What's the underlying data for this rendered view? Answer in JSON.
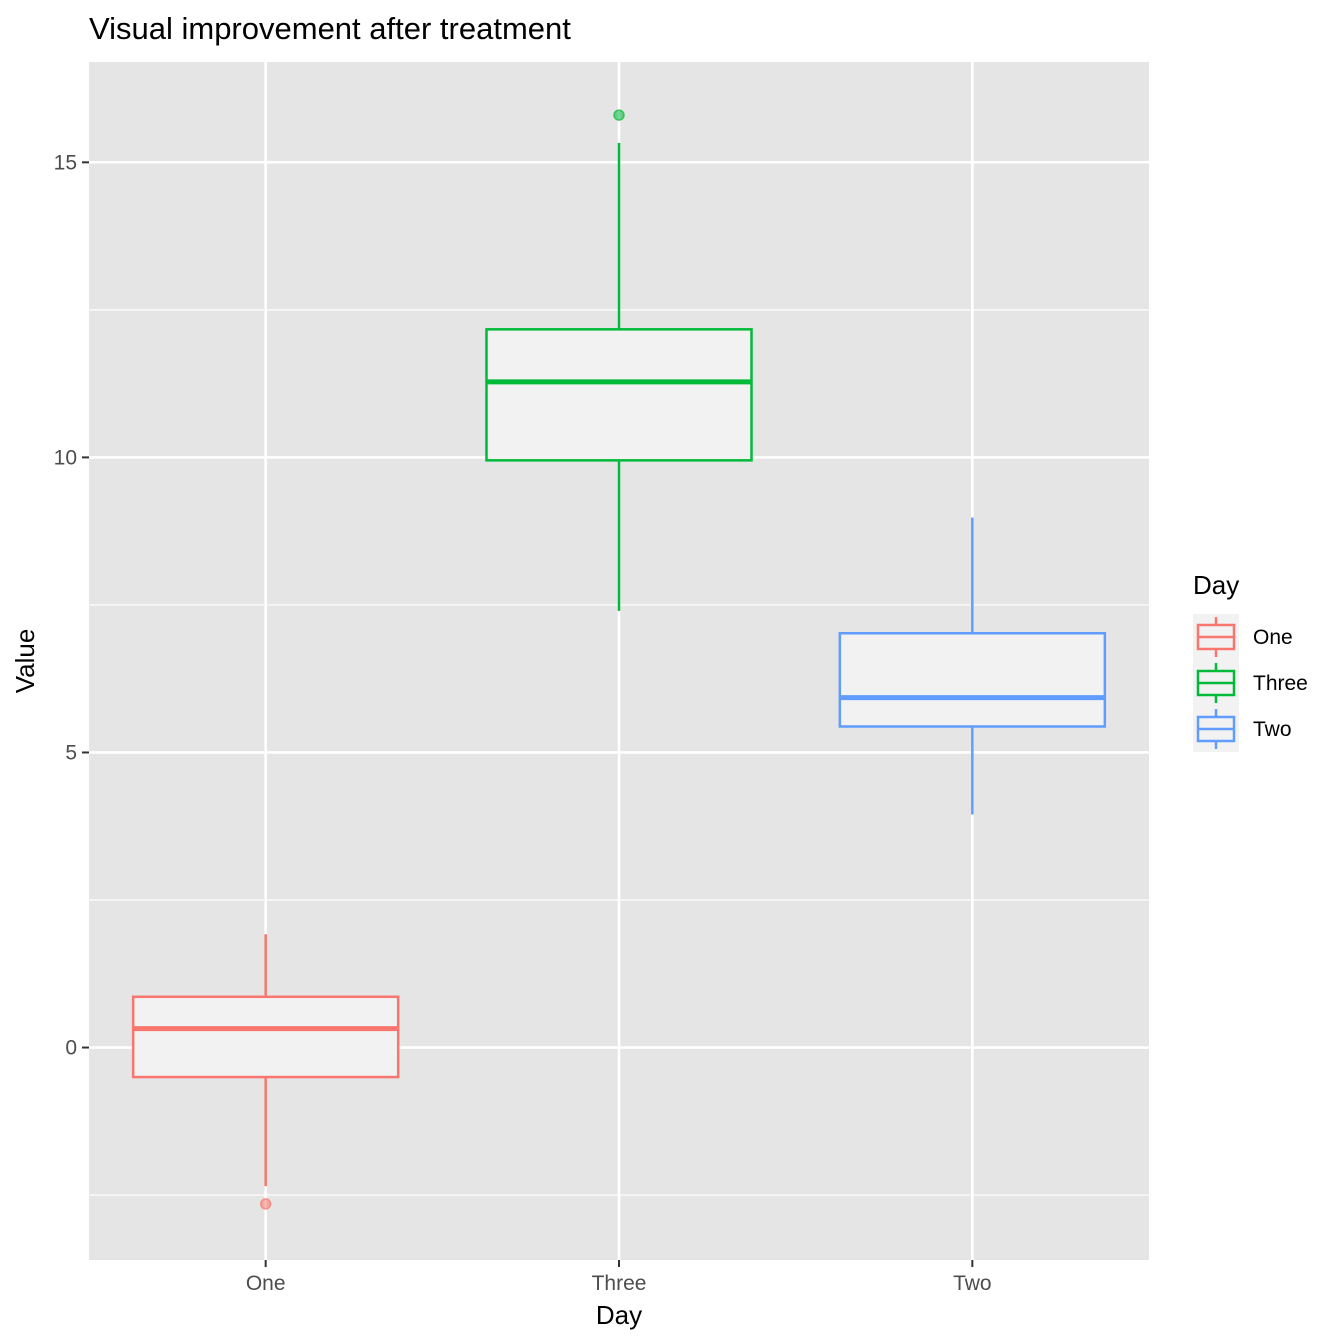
{
  "chart_data": {
    "type": "boxplot",
    "title": "Visual improvement after treatment",
    "xlabel": "Day",
    "ylabel": "Value",
    "categories": [
      "One",
      "Three",
      "Two"
    ],
    "ylim": [
      -3.6,
      16.7
    ],
    "yticks": [
      0,
      5,
      10,
      15
    ],
    "grid": true,
    "legend": {
      "title": "Day",
      "position": "right",
      "entries": [
        "One",
        "Three",
        "Two"
      ]
    },
    "series": [
      {
        "name": "One",
        "color": "#F8766D",
        "whisker_low": -2.35,
        "q1": -0.5,
        "median": 0.32,
        "q3": 0.86,
        "whisker_high": 1.92,
        "outliers": [
          -2.65
        ]
      },
      {
        "name": "Three",
        "color": "#00BA38",
        "whisker_low": 7.4,
        "q1": 9.95,
        "median": 11.28,
        "q3": 12.17,
        "whisker_high": 15.33,
        "outliers": [
          15.8
        ]
      },
      {
        "name": "Two",
        "color": "#619CFF",
        "whisker_low": 3.95,
        "q1": 5.44,
        "median": 5.93,
        "q3": 7.02,
        "whisker_high": 8.98,
        "outliers": []
      }
    ]
  }
}
